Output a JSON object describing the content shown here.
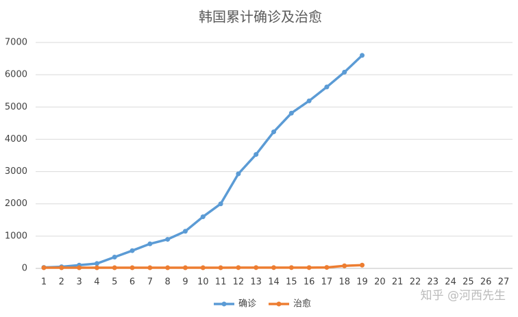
{
  "chart_data": {
    "type": "line",
    "title": "韩国累计确诊及治愈",
    "categories": [
      "1",
      "2",
      "3",
      "4",
      "5",
      "6",
      "7",
      "8",
      "9",
      "10",
      "11",
      "12",
      "13",
      "14",
      "15",
      "16",
      "17",
      "18",
      "19",
      "20",
      "21",
      "22",
      "23",
      "24",
      "25",
      "26",
      "27"
    ],
    "series": [
      {
        "name": "确诊",
        "color": "#5b9bd5",
        "values": [
          30,
          50,
          100,
          150,
          350,
          550,
          760,
          900,
          1150,
          1600,
          2000,
          2930,
          3530,
          4230,
          4810,
          5190,
          5620,
          6080,
          6600,
          null,
          null,
          null,
          null,
          null,
          null,
          null,
          null
        ]
      },
      {
        "name": "治愈",
        "color": "#ed7d31",
        "values": [
          20,
          20,
          20,
          20,
          20,
          20,
          20,
          20,
          20,
          20,
          20,
          25,
          25,
          25,
          25,
          25,
          30,
          80,
          100,
          null,
          null,
          null,
          null,
          null,
          null,
          null,
          null
        ]
      }
    ],
    "ylim": [
      0,
      7000
    ],
    "yticks": [
      0,
      1000,
      2000,
      3000,
      4000,
      5000,
      6000,
      7000
    ],
    "grid": true,
    "legend": "bottom",
    "watermark": "知乎 @河西先生"
  }
}
